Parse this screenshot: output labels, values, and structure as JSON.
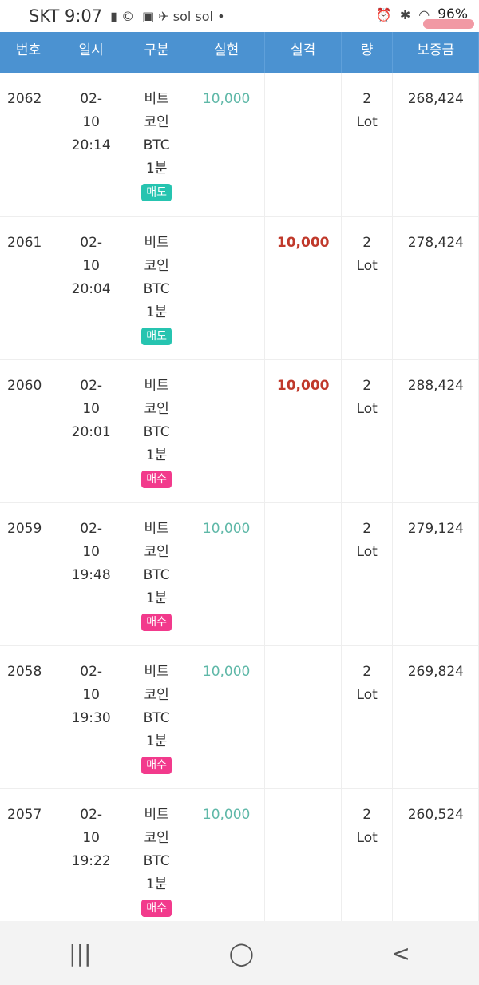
{
  "status": {
    "carrier": "SKT",
    "time": "9:07",
    "battery": "96%",
    "icons": [
      "message-icon",
      "c-icon",
      "on-icon",
      "bird-icon",
      "sol-icon",
      "sol-icon",
      "dot-icon",
      "alarm-icon",
      "bluetooth-icon",
      "wifi-icon",
      "signal-icon"
    ]
  },
  "header": [
    "번호",
    "일시",
    "구분",
    "실현",
    "실격",
    "량",
    "보증금"
  ],
  "rows": [
    {
      "no": "2062",
      "date": "02-",
      "day": "10",
      "time": "20:14",
      "item1": "비트",
      "item2": "코인",
      "item3": "BTC",
      "item4": "1분",
      "side": "매도",
      "profit": "10,000",
      "loss": "",
      "qty": "2",
      "unit": "Lot",
      "margin": "268,424"
    },
    {
      "no": "2061",
      "date": "02-",
      "day": "10",
      "time": "20:04",
      "item1": "비트",
      "item2": "코인",
      "item3": "BTC",
      "item4": "1분",
      "side": "매도",
      "profit": "",
      "loss": "10,000",
      "qty": "2",
      "unit": "Lot",
      "margin": "278,424"
    },
    {
      "no": "2060",
      "date": "02-",
      "day": "10",
      "time": "20:01",
      "item1": "비트",
      "item2": "코인",
      "item3": "BTC",
      "item4": "1분",
      "side": "매수",
      "profit": "",
      "loss": "10,000",
      "qty": "2",
      "unit": "Lot",
      "margin": "288,424"
    },
    {
      "no": "2059",
      "date": "02-",
      "day": "10",
      "time": "19:48",
      "item1": "비트",
      "item2": "코인",
      "item3": "BTC",
      "item4": "1분",
      "side": "매수",
      "profit": "10,000",
      "loss": "",
      "qty": "2",
      "unit": "Lot",
      "margin": "279,124"
    },
    {
      "no": "2058",
      "date": "02-",
      "day": "10",
      "time": "19:30",
      "item1": "비트",
      "item2": "코인",
      "item3": "BTC",
      "item4": "1분",
      "side": "매수",
      "profit": "10,000",
      "loss": "",
      "qty": "2",
      "unit": "Lot",
      "margin": "269,824"
    },
    {
      "no": "2057",
      "date": "02-",
      "day": "10",
      "time": "19:22",
      "item1": "비트",
      "item2": "코인",
      "item3": "BTC",
      "item4": "1분",
      "side": "매수",
      "profit": "10,000",
      "loss": "",
      "qty": "2",
      "unit": "Lot",
      "margin": "260,524"
    }
  ],
  "colors": {
    "header": "#4b92d1",
    "profit": "#5fb8a8",
    "loss": "#c0392b",
    "sell": "#26c4b0",
    "buy": "#f23a8c"
  },
  "nav": {
    "recent": "|||",
    "home": "◯",
    "back": "<"
  }
}
